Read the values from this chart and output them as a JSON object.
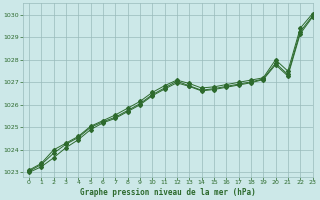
{
  "title": "Graphe pression niveau de la mer (hPa)",
  "bg_color": "#cce8e8",
  "grid_color": "#99bbbb",
  "line_color": "#2d6a2d",
  "xlim": [
    -0.5,
    23
  ],
  "ylim": [
    1022.8,
    1030.5
  ],
  "xticks": [
    0,
    1,
    2,
    3,
    4,
    5,
    6,
    7,
    8,
    9,
    10,
    11,
    12,
    13,
    14,
    15,
    16,
    17,
    18,
    19,
    20,
    21,
    22,
    23
  ],
  "yticks": [
    1023,
    1024,
    1025,
    1026,
    1027,
    1028,
    1029,
    1030
  ],
  "series1_x": [
    0,
    1,
    2,
    3,
    4,
    5,
    6,
    7,
    8,
    9,
    10,
    11,
    12,
    13,
    14,
    15,
    16,
    17,
    18,
    19,
    20,
    21,
    22,
    23
  ],
  "series1_y": [
    1023.1,
    1023.4,
    1024.0,
    1024.3,
    1024.6,
    1025.05,
    1025.3,
    1025.55,
    1025.85,
    1026.15,
    1026.55,
    1026.85,
    1027.1,
    1026.95,
    1026.75,
    1026.8,
    1026.9,
    1027.0,
    1027.1,
    1027.2,
    1028.0,
    1027.5,
    1029.4,
    1030.05
  ],
  "series2_x": [
    0,
    1,
    2,
    3,
    4,
    5,
    6,
    7,
    8,
    9,
    10,
    11,
    12,
    13,
    14,
    15,
    16,
    17,
    18,
    19,
    20,
    21,
    22,
    23
  ],
  "series2_y": [
    1023.05,
    1023.35,
    1023.85,
    1024.25,
    1024.55,
    1025.0,
    1025.25,
    1025.45,
    1025.75,
    1026.05,
    1026.45,
    1026.75,
    1027.05,
    1026.85,
    1026.65,
    1026.72,
    1026.82,
    1026.92,
    1027.02,
    1027.15,
    1027.85,
    1027.35,
    1029.25,
    1029.95
  ],
  "series3_x": [
    0,
    1,
    2,
    3,
    4,
    5,
    6,
    7,
    8,
    9,
    10,
    11,
    12,
    13,
    14,
    15,
    16,
    17,
    18,
    19,
    20,
    21,
    22,
    23
  ],
  "series3_y": [
    1023.0,
    1023.25,
    1023.65,
    1024.1,
    1024.45,
    1024.9,
    1025.2,
    1025.4,
    1025.7,
    1026.0,
    1026.4,
    1026.7,
    1026.98,
    1026.82,
    1026.62,
    1026.68,
    1026.78,
    1026.88,
    1026.98,
    1027.12,
    1027.78,
    1027.28,
    1029.15,
    1029.9
  ]
}
